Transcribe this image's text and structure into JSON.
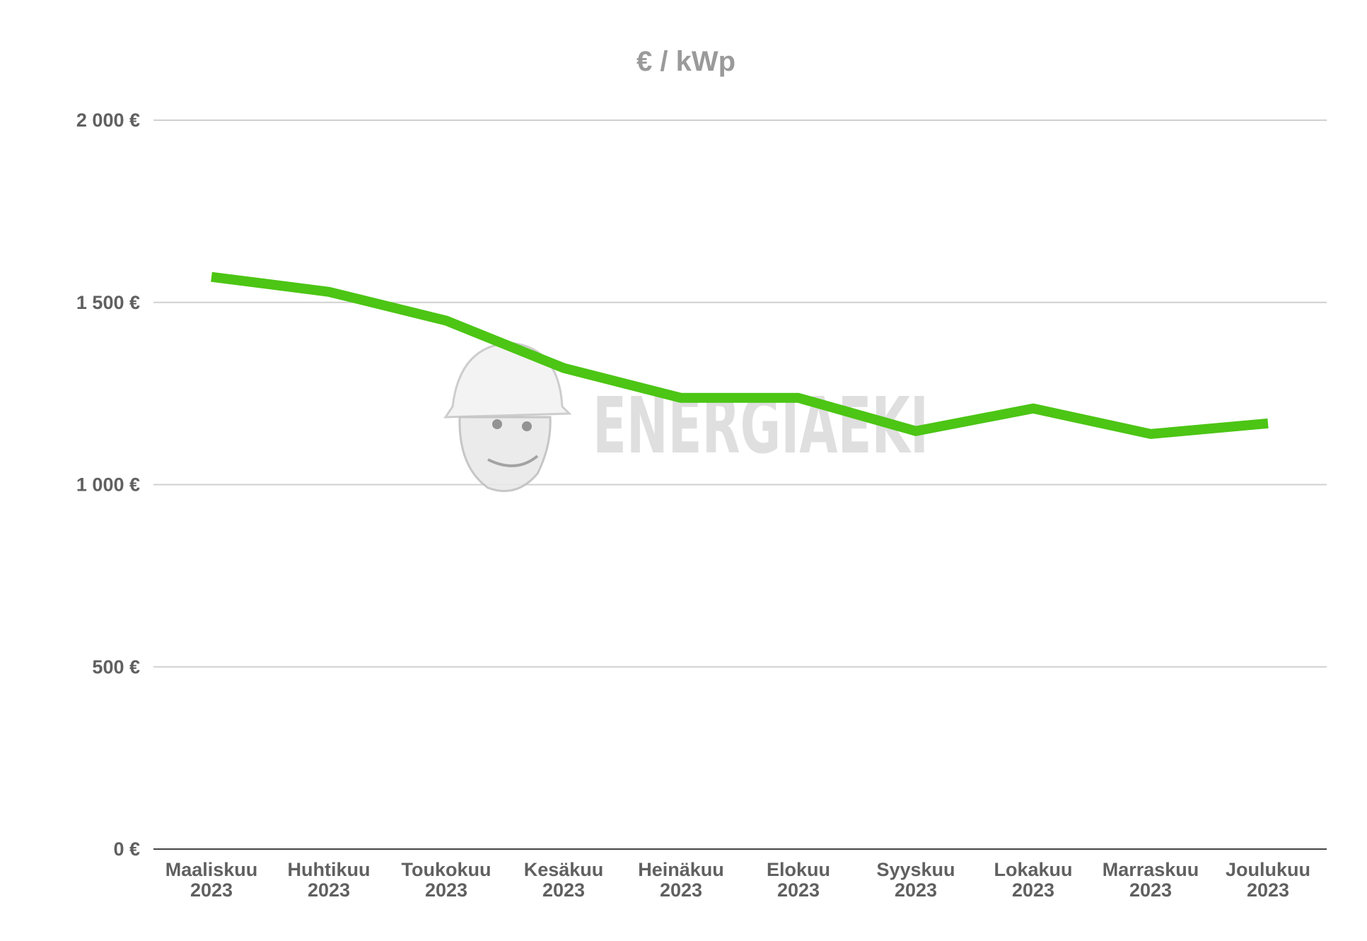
{
  "chart_data": {
    "type": "line",
    "title": "€ / kWp",
    "xlabel": "",
    "ylabel": "",
    "ylim": [
      0,
      2000
    ],
    "yticks": [
      0,
      500,
      1000,
      1500,
      2000
    ],
    "ytick_labels": [
      "0 €",
      "500 €",
      "1 000 €",
      "1 500 €",
      "2 000 €"
    ],
    "categories": [
      [
        "Maaliskuu",
        "2023"
      ],
      [
        "Huhtikuu",
        "2023"
      ],
      [
        "Toukokuu",
        "2023"
      ],
      [
        "Kesäkuu",
        "2023"
      ],
      [
        "Heinäkuu",
        "2023"
      ],
      [
        "Elokuu",
        "2023"
      ],
      [
        "Syyskuu",
        "2023"
      ],
      [
        "Lokakuu",
        "2023"
      ],
      [
        "Marraskuu",
        "2023"
      ],
      [
        "Joulukuu",
        "2023"
      ]
    ],
    "series": [
      {
        "name": "€ / kWp",
        "color": "#4cc514",
        "values": [
          1570,
          1529,
          1450,
          1320,
          1238,
          1238,
          1147,
          1209,
          1139,
          1168
        ]
      }
    ],
    "grid": true,
    "watermark": "ENERGIAEKI"
  }
}
